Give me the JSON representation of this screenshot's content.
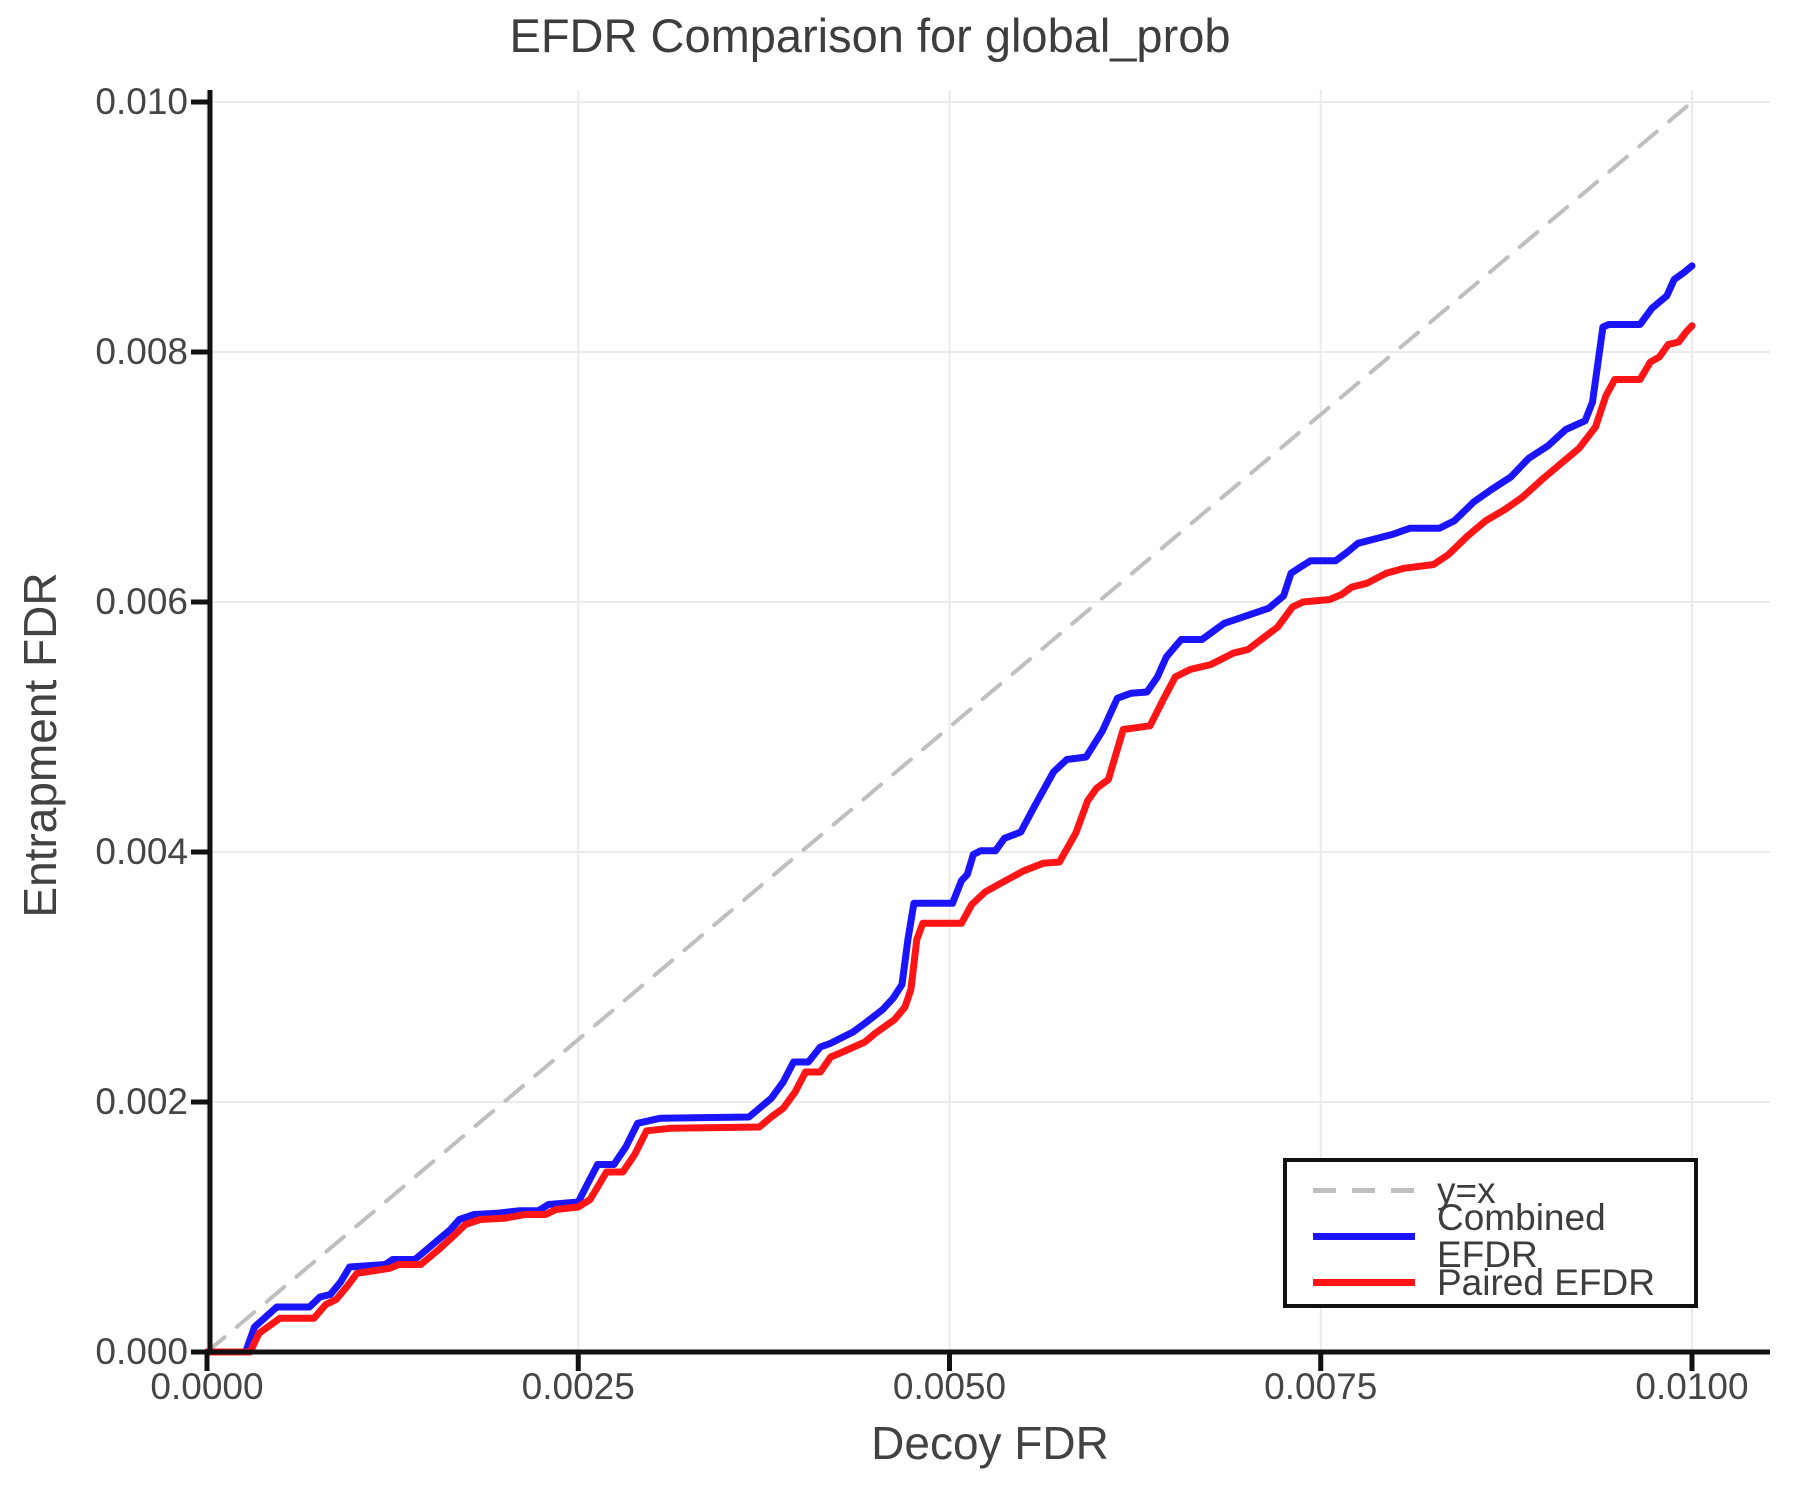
{
  "chart_data": {
    "type": "line",
    "title": "EFDR Comparison for global_prob",
    "xlabel": "Decoy FDR",
    "ylabel": "Entrapment FDR",
    "xlim": [
      0.0,
      0.0105
    ],
    "ylim": [
      0.0,
      0.0101
    ],
    "grid": true,
    "legend_position": "lower right",
    "x_ticks": {
      "values": [
        0.0,
        0.0025,
        0.005,
        0.0075,
        0.01
      ],
      "labels": [
        "0.0000",
        "0.0025",
        "0.0050",
        "0.0075",
        "0.0100"
      ]
    },
    "y_ticks": {
      "values": [
        0.0,
        0.002,
        0.004,
        0.006,
        0.008,
        0.01
      ],
      "labels": [
        "0.000",
        "0.002",
        "0.004",
        "0.006",
        "0.008",
        "0.010"
      ]
    },
    "series": [
      {
        "name": "y=x",
        "style": "dashed",
        "color": "#bfbfbf",
        "width": 4,
        "points": [
          [
            0.0,
            0.0
          ],
          [
            0.01,
            0.01
          ]
        ]
      },
      {
        "name": "Combined EFDR",
        "style": "solid",
        "color": "#1b15ff",
        "width": 7,
        "points": [
          [
            0.0,
            0.0
          ],
          [
            0.00026,
            0.0
          ],
          [
            0.00032,
            0.0002
          ],
          [
            0.00047,
            0.00036
          ],
          [
            0.00069,
            0.00036
          ],
          [
            0.00076,
            0.00044
          ],
          [
            0.00083,
            0.00046
          ],
          [
            0.0009,
            0.00056
          ],
          [
            0.00096,
            0.00068
          ],
          [
            0.0012,
            0.0007
          ],
          [
            0.00125,
            0.00074
          ],
          [
            0.0014,
            0.00074
          ],
          [
            0.00152,
            0.00086
          ],
          [
            0.00164,
            0.00098
          ],
          [
            0.0017,
            0.00106
          ],
          [
            0.0018,
            0.0011
          ],
          [
            0.00195,
            0.00111
          ],
          [
            0.0021,
            0.00113
          ],
          [
            0.00223,
            0.00113
          ],
          [
            0.0023,
            0.00118
          ],
          [
            0.0025,
            0.0012
          ],
          [
            0.00256,
            0.00134
          ],
          [
            0.00263,
            0.0015
          ],
          [
            0.00274,
            0.0015
          ],
          [
            0.00282,
            0.00164
          ],
          [
            0.0029,
            0.00183
          ],
          [
            0.00305,
            0.00187
          ],
          [
            0.00365,
            0.00188
          ],
          [
            0.00373,
            0.00196
          ],
          [
            0.0038,
            0.00203
          ],
          [
            0.00388,
            0.00216
          ],
          [
            0.00395,
            0.00232
          ],
          [
            0.00405,
            0.00232
          ],
          [
            0.00413,
            0.00244
          ],
          [
            0.0042,
            0.00247
          ],
          [
            0.00435,
            0.00256
          ],
          [
            0.00443,
            0.00263
          ],
          [
            0.00455,
            0.00274
          ],
          [
            0.00462,
            0.00283
          ],
          [
            0.00468,
            0.00294
          ],
          [
            0.00472,
            0.0033
          ],
          [
            0.00476,
            0.00359
          ],
          [
            0.00502,
            0.00359
          ],
          [
            0.00508,
            0.00377
          ],
          [
            0.00512,
            0.00382
          ],
          [
            0.00516,
            0.00398
          ],
          [
            0.00521,
            0.00401
          ],
          [
            0.00531,
            0.00401
          ],
          [
            0.00537,
            0.00411
          ],
          [
            0.00548,
            0.00416
          ],
          [
            0.00557,
            0.00436
          ],
          [
            0.0057,
            0.00464
          ],
          [
            0.00579,
            0.00474
          ],
          [
            0.00592,
            0.00476
          ],
          [
            0.00603,
            0.00497
          ],
          [
            0.00613,
            0.00523
          ],
          [
            0.00622,
            0.00527
          ],
          [
            0.00633,
            0.00528
          ],
          [
            0.0064,
            0.0054
          ],
          [
            0.00646,
            0.00556
          ],
          [
            0.00656,
            0.0057
          ],
          [
            0.0067,
            0.0057
          ],
          [
            0.00685,
            0.00583
          ],
          [
            0.00695,
            0.00587
          ],
          [
            0.00715,
            0.00595
          ],
          [
            0.00725,
            0.00605
          ],
          [
            0.0073,
            0.00623
          ],
          [
            0.00735,
            0.00627
          ],
          [
            0.00743,
            0.00633
          ],
          [
            0.0076,
            0.00633
          ],
          [
            0.00768,
            0.0064
          ],
          [
            0.00775,
            0.00647
          ],
          [
            0.00785,
            0.0065
          ],
          [
            0.00798,
            0.00654
          ],
          [
            0.0081,
            0.00659
          ],
          [
            0.0083,
            0.00659
          ],
          [
            0.0084,
            0.00665
          ],
          [
            0.00853,
            0.0068
          ],
          [
            0.00865,
            0.0069
          ],
          [
            0.00878,
            0.007
          ],
          [
            0.0089,
            0.00715
          ],
          [
            0.00903,
            0.00725
          ],
          [
            0.00915,
            0.00738
          ],
          [
            0.00928,
            0.00745
          ],
          [
            0.00933,
            0.0076
          ],
          [
            0.0094,
            0.0082
          ],
          [
            0.00944,
            0.00822
          ],
          [
            0.00965,
            0.00822
          ],
          [
            0.00973,
            0.00835
          ],
          [
            0.00983,
            0.00845
          ],
          [
            0.00988,
            0.00858
          ],
          [
            0.00995,
            0.00864
          ],
          [
            0.01,
            0.00869
          ]
        ]
      },
      {
        "name": "Paired EFDR",
        "style": "solid",
        "color": "#ff1515",
        "width": 7,
        "points": [
          [
            0.0,
            0.0
          ],
          [
            0.00029,
            0.0
          ],
          [
            0.00035,
            0.00015
          ],
          [
            0.00049,
            0.00027
          ],
          [
            0.00072,
            0.00027
          ],
          [
            0.0008,
            0.00038
          ],
          [
            0.00087,
            0.00042
          ],
          [
            0.00094,
            0.00052
          ],
          [
            0.00101,
            0.00063
          ],
          [
            0.00123,
            0.00067
          ],
          [
            0.00129,
            0.0007
          ],
          [
            0.00144,
            0.0007
          ],
          [
            0.00156,
            0.00082
          ],
          [
            0.00167,
            0.00094
          ],
          [
            0.00174,
            0.00102
          ],
          [
            0.00184,
            0.00106
          ],
          [
            0.002,
            0.00107
          ],
          [
            0.00214,
            0.0011
          ],
          [
            0.00228,
            0.0011
          ],
          [
            0.00235,
            0.00114
          ],
          [
            0.0025,
            0.00116
          ],
          [
            0.00258,
            0.00122
          ],
          [
            0.00262,
            0.0013
          ],
          [
            0.00269,
            0.00144
          ],
          [
            0.0028,
            0.00144
          ],
          [
            0.00288,
            0.00158
          ],
          [
            0.00296,
            0.00177
          ],
          [
            0.00312,
            0.00179
          ],
          [
            0.00372,
            0.0018
          ],
          [
            0.0038,
            0.00188
          ],
          [
            0.00388,
            0.00195
          ],
          [
            0.00396,
            0.00208
          ],
          [
            0.00403,
            0.00224
          ],
          [
            0.00413,
            0.00224
          ],
          [
            0.0042,
            0.00236
          ],
          [
            0.00428,
            0.0024
          ],
          [
            0.00443,
            0.00248
          ],
          [
            0.0045,
            0.00255
          ],
          [
            0.00463,
            0.00266
          ],
          [
            0.0047,
            0.00276
          ],
          [
            0.00474,
            0.0029
          ],
          [
            0.00478,
            0.0033
          ],
          [
            0.00482,
            0.00343
          ],
          [
            0.00508,
            0.00343
          ],
          [
            0.00515,
            0.00358
          ],
          [
            0.00524,
            0.00368
          ],
          [
            0.00533,
            0.00374
          ],
          [
            0.0055,
            0.00385
          ],
          [
            0.00563,
            0.00391
          ],
          [
            0.00574,
            0.00392
          ],
          [
            0.00585,
            0.00415
          ],
          [
            0.00593,
            0.00441
          ],
          [
            0.00599,
            0.00451
          ],
          [
            0.00607,
            0.00458
          ],
          [
            0.00617,
            0.00498
          ],
          [
            0.00635,
            0.00501
          ],
          [
            0.00644,
            0.00522
          ],
          [
            0.00652,
            0.0054
          ],
          [
            0.00662,
            0.00546
          ],
          [
            0.00676,
            0.0055
          ],
          [
            0.00691,
            0.00559
          ],
          [
            0.00701,
            0.00562
          ],
          [
            0.00721,
            0.0058
          ],
          [
            0.00731,
            0.00596
          ],
          [
            0.00738,
            0.006
          ],
          [
            0.00756,
            0.00602
          ],
          [
            0.00764,
            0.00606
          ],
          [
            0.00771,
            0.00612
          ],
          [
            0.00781,
            0.00615
          ],
          [
            0.00794,
            0.00623
          ],
          [
            0.00806,
            0.00627
          ],
          [
            0.00826,
            0.0063
          ],
          [
            0.00836,
            0.00638
          ],
          [
            0.00849,
            0.00653
          ],
          [
            0.00861,
            0.00665
          ],
          [
            0.00874,
            0.00674
          ],
          [
            0.00886,
            0.00684
          ],
          [
            0.00899,
            0.00698
          ],
          [
            0.00911,
            0.0071
          ],
          [
            0.00924,
            0.00723
          ],
          [
            0.00935,
            0.0074
          ],
          [
            0.00942,
            0.00765
          ],
          [
            0.00948,
            0.00778
          ],
          [
            0.00965,
            0.00778
          ],
          [
            0.00972,
            0.00792
          ],
          [
            0.00978,
            0.00796
          ],
          [
            0.00984,
            0.00806
          ],
          [
            0.00991,
            0.00808
          ],
          [
            0.00996,
            0.00816
          ],
          [
            0.01,
            0.00821
          ]
        ]
      }
    ],
    "colors": {
      "identity_line": "#bfbfbf",
      "combined": "#1b15ff",
      "paired": "#ff1515",
      "grid": "#ebebeb",
      "spine": "#111111",
      "text": "#3d3d3d"
    }
  }
}
